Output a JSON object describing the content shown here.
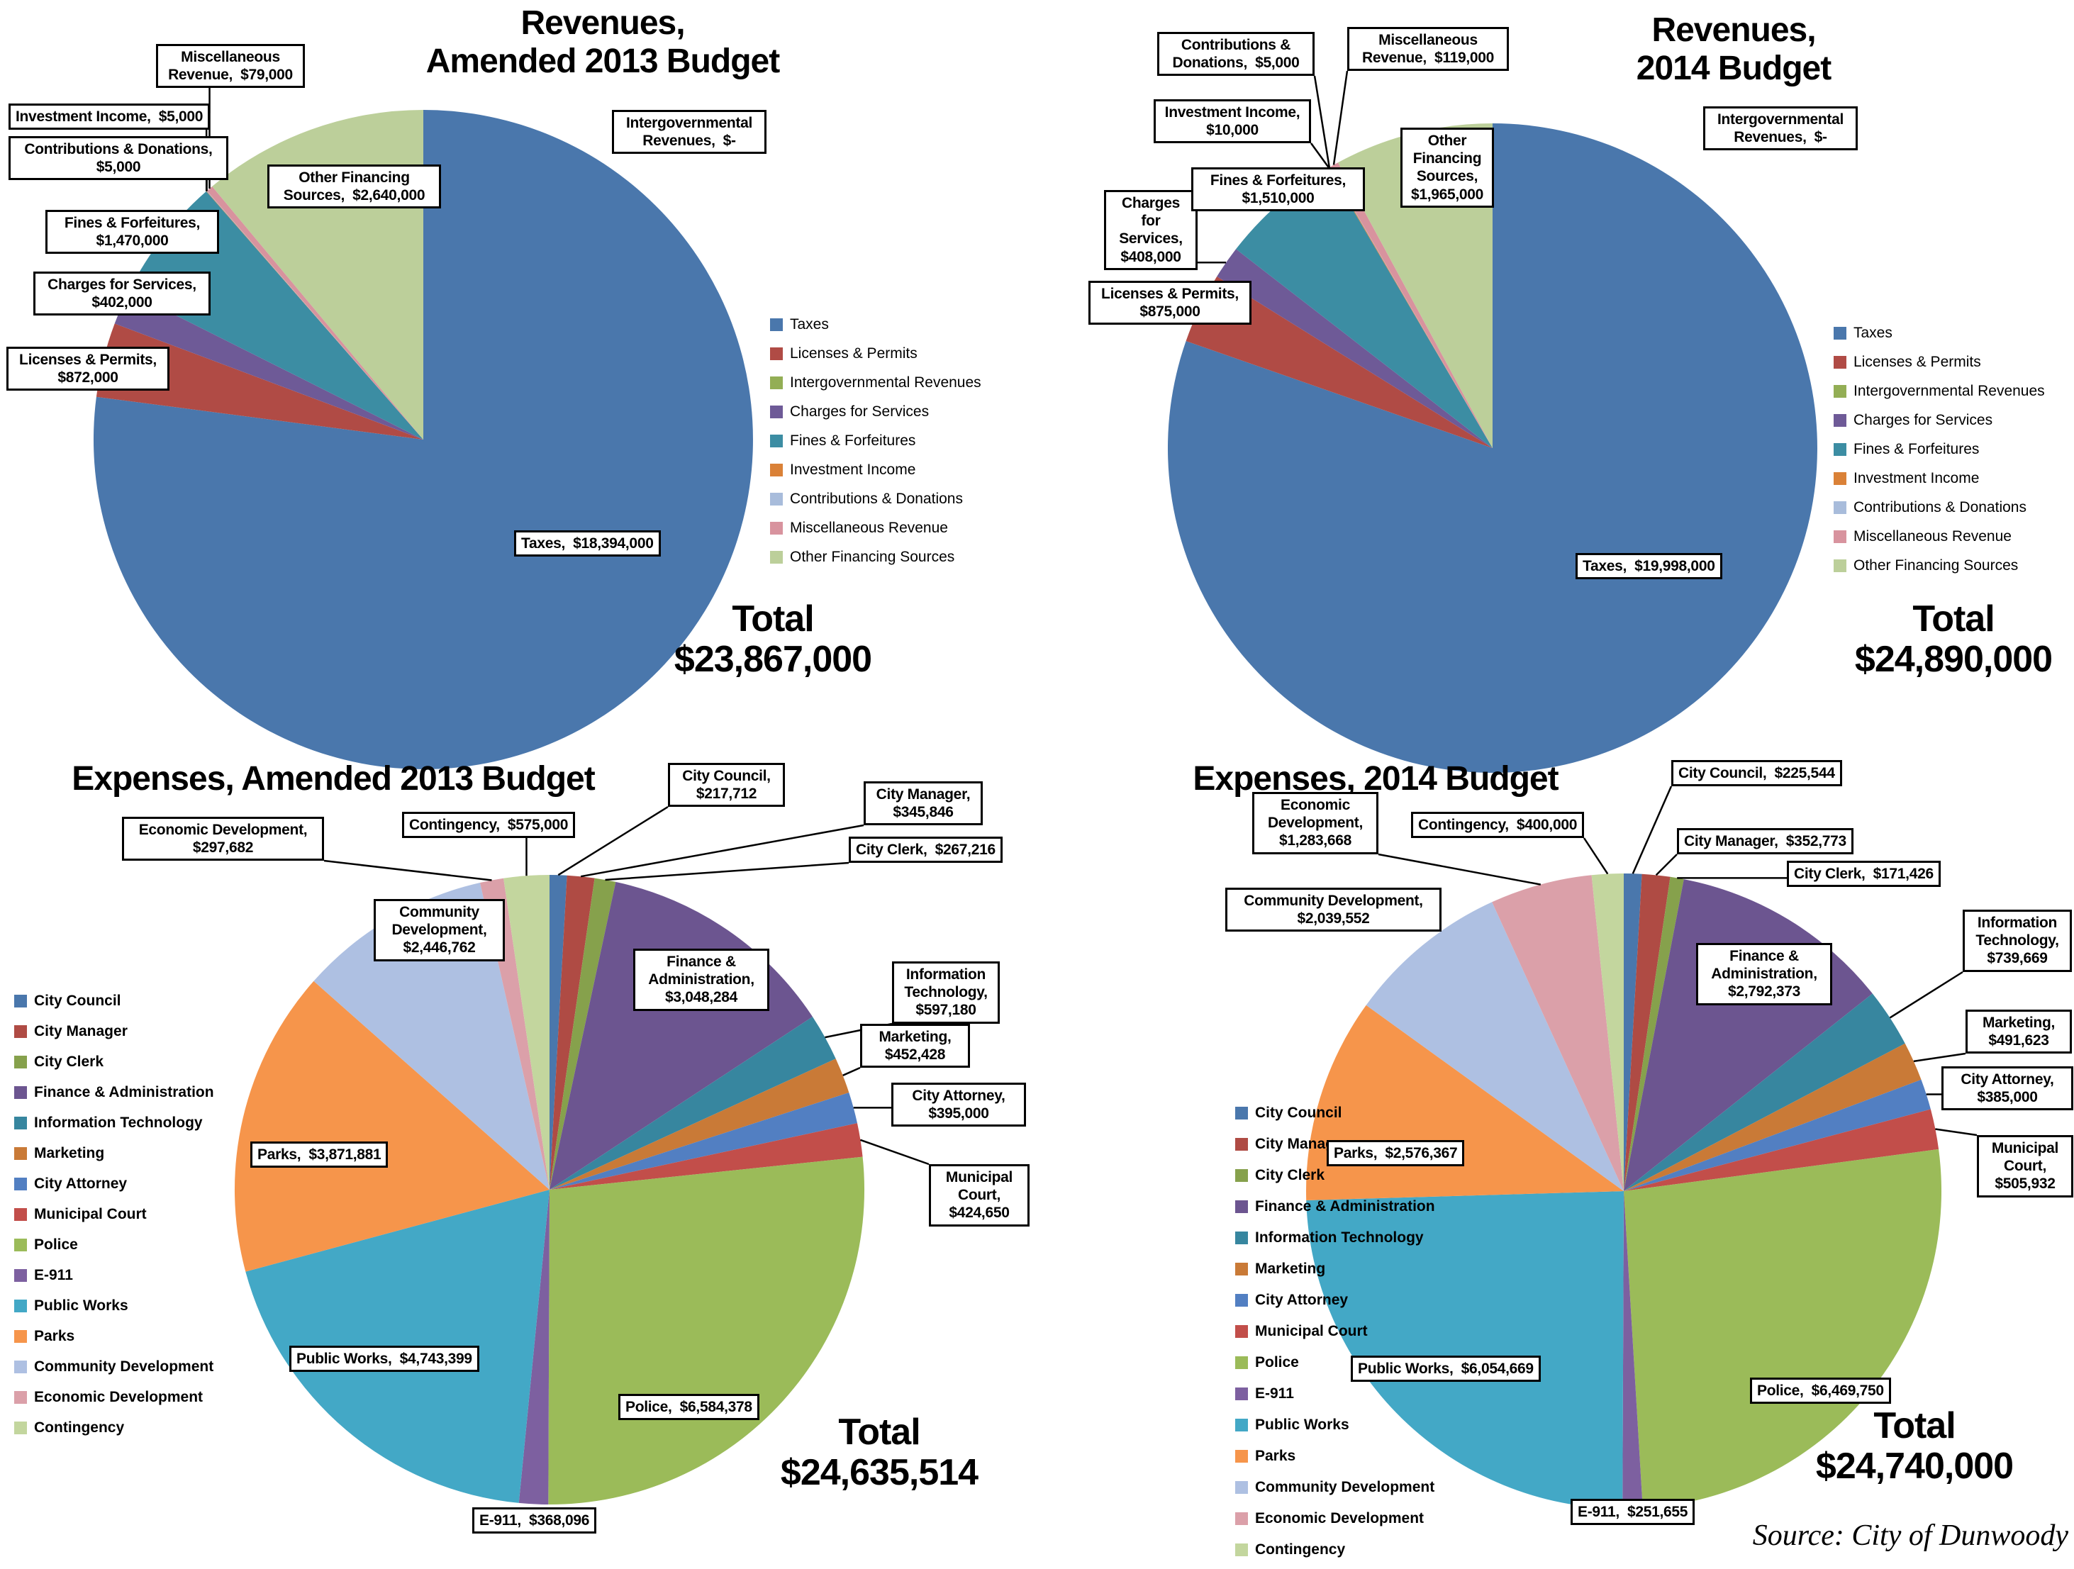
{
  "source_note": "Source: City of Dunwoody",
  "chart_data": [
    {
      "type": "pie",
      "title": "Revenues,\nAmended 2013 Budget",
      "total": "Total\n$23,867,000",
      "legend_position": "right-middle",
      "categories": [
        "Taxes",
        "Licenses & Permits",
        "Intergovernmental Revenues",
        "Charges for Services",
        "Fines & Forfeitures",
        "Investment Income",
        "Contributions & Donations",
        "Miscellaneous Revenue",
        "Other Financing Sources"
      ],
      "values": [
        18394000,
        872000,
        0,
        402000,
        1470000,
        5000,
        5000,
        79000,
        2640000
      ],
      "labels": [
        "Taxes,  $18,394,000",
        "Licenses & Permits,  $872,000",
        "Intergovernmental Revenues,  $-",
        "Charges for Services,  $402,000",
        "Fines & Forfeitures,  $1,470,000",
        "Investment Income,  $5,000",
        "Contributions & Donations,  $5,000",
        "Miscellaneous Revenue,  $79,000",
        "Other Financing Sources,  $2,640,000"
      ],
      "colors": [
        "#4A77AC",
        "#B04B45",
        "#93AE55",
        "#6E5A97",
        "#3C8DA3",
        "#DA8137",
        "#A8BCDB",
        "#D8939E",
        "#BCCF9A"
      ]
    },
    {
      "type": "pie",
      "title": "Revenues,\n2014 Budget",
      "total": "Total\n$24,890,000",
      "legend_position": "right-middle",
      "categories": [
        "Taxes",
        "Licenses & Permits",
        "Intergovernmental Revenues",
        "Charges for Services",
        "Fines & Forfeitures",
        "Investment Income",
        "Contributions & Donations",
        "Miscellaneous Revenue",
        "Other Financing Sources"
      ],
      "values": [
        19998000,
        875000,
        0,
        408000,
        1510000,
        10000,
        5000,
        119000,
        1965000
      ],
      "labels": [
        "Taxes,  $19,998,000",
        "Licenses & Permits,  $875,000",
        "Intergovernmental Revenues,  $-",
        "Charges for Services,  $408,000",
        "Fines & Forfeitures,  $1,510,000",
        "Investment Income,  $10,000",
        "Contributions & Donations,  $5,000",
        "Miscellaneous Revenue,  $119,000",
        "Other Financing Sources,  $1,965,000"
      ],
      "colors": [
        "#4A77AC",
        "#B04B45",
        "#93AE55",
        "#6E5A97",
        "#3C8DA3",
        "#DA8137",
        "#A8BCDB",
        "#D8939E",
        "#BCCF9A"
      ]
    },
    {
      "type": "pie",
      "title": "Expenses, Amended 2013 Budget",
      "total": "Total\n$24,635,514",
      "legend_position": "left-middle",
      "categories": [
        "City Council",
        "City Manager",
        "City Clerk",
        "Finance & Administration",
        "Information Technology",
        "Marketing",
        "City Attorney",
        "Municipal Court",
        "Police",
        "E-911",
        "Public Works",
        "Parks",
        "Community Development",
        "Economic Development",
        "Contingency"
      ],
      "values": [
        217712,
        345846,
        267216,
        3048284,
        597180,
        452428,
        395000,
        424650,
        6584378,
        368096,
        4743399,
        3871881,
        2446762,
        297682,
        575000
      ],
      "labels": [
        "City Council,  $217,712",
        "City Manager,  $345,846",
        "City Clerk,  $267,216",
        "Finance & Administration,  $3,048,284",
        "Information Technology,  $597,180",
        "Marketing,  $452,428",
        "City Attorney,  $395,000",
        "Municipal Court,  $424,650",
        "Police,  $6,584,378",
        "E-911,  $368,096",
        "Public Works,  $4,743,399",
        "Parks,  $3,871,881",
        "Community Development,  $2,446,762",
        "Economic Development,  $297,682",
        "Contingency,  $575,000"
      ],
      "colors": [
        "#4A77AC",
        "#AF4B44",
        "#86A14C",
        "#6C5590",
        "#37869F",
        "#C97A37",
        "#527FC2",
        "#C24E4A",
        "#9BBB59",
        "#7D60A0",
        "#43A8C6",
        "#F6954B",
        "#AEC0E2",
        "#DBA0A9",
        "#C3D69E"
      ]
    },
    {
      "type": "pie",
      "title": "Expenses, 2014 Budget",
      "total": "Total\n$24,740,000",
      "legend_position": "left-middle",
      "categories": [
        "City Council",
        "City Manager",
        "City Clerk",
        "Finance & Administration",
        "Information Technology",
        "Marketing",
        "City Attorney",
        "Municipal Court",
        "Police",
        "E-911",
        "Public Works",
        "Parks",
        "Community Development",
        "Economic Development",
        "Contingency"
      ],
      "values": [
        225544,
        352773,
        171426,
        2792373,
        739669,
        491623,
        385000,
        505932,
        6469750,
        251655,
        6054669,
        2576367,
        2039552,
        1283668,
        400000
      ],
      "labels": [
        "City Council,  $225,544",
        "City Manager,  $352,773",
        "City Clerk,  $171,426",
        "Finance & Administration,  $2,792,373",
        "Information Technology,  $739,669",
        "Marketing,  $491,623",
        "City Attorney,  $385,000",
        "Municipal Court,  $505,932",
        "Police,  $6,469,750",
        "E-911,  $251,655",
        "Public Works,  $6,054,669",
        "Parks,  $2,576,367",
        "Community Development,  $2,039,552",
        "Economic Development,  $1,283,668",
        "Contingency,  $400,000"
      ],
      "colors": [
        "#4A77AC",
        "#AF4B44",
        "#86A14C",
        "#6C5590",
        "#37869F",
        "#C97A37",
        "#527FC2",
        "#C24E4A",
        "#9BBB59",
        "#7D60A0",
        "#43A8C6",
        "#F6954B",
        "#AEC0E2",
        "#DBA0A9",
        "#C3D69E"
      ]
    }
  ]
}
